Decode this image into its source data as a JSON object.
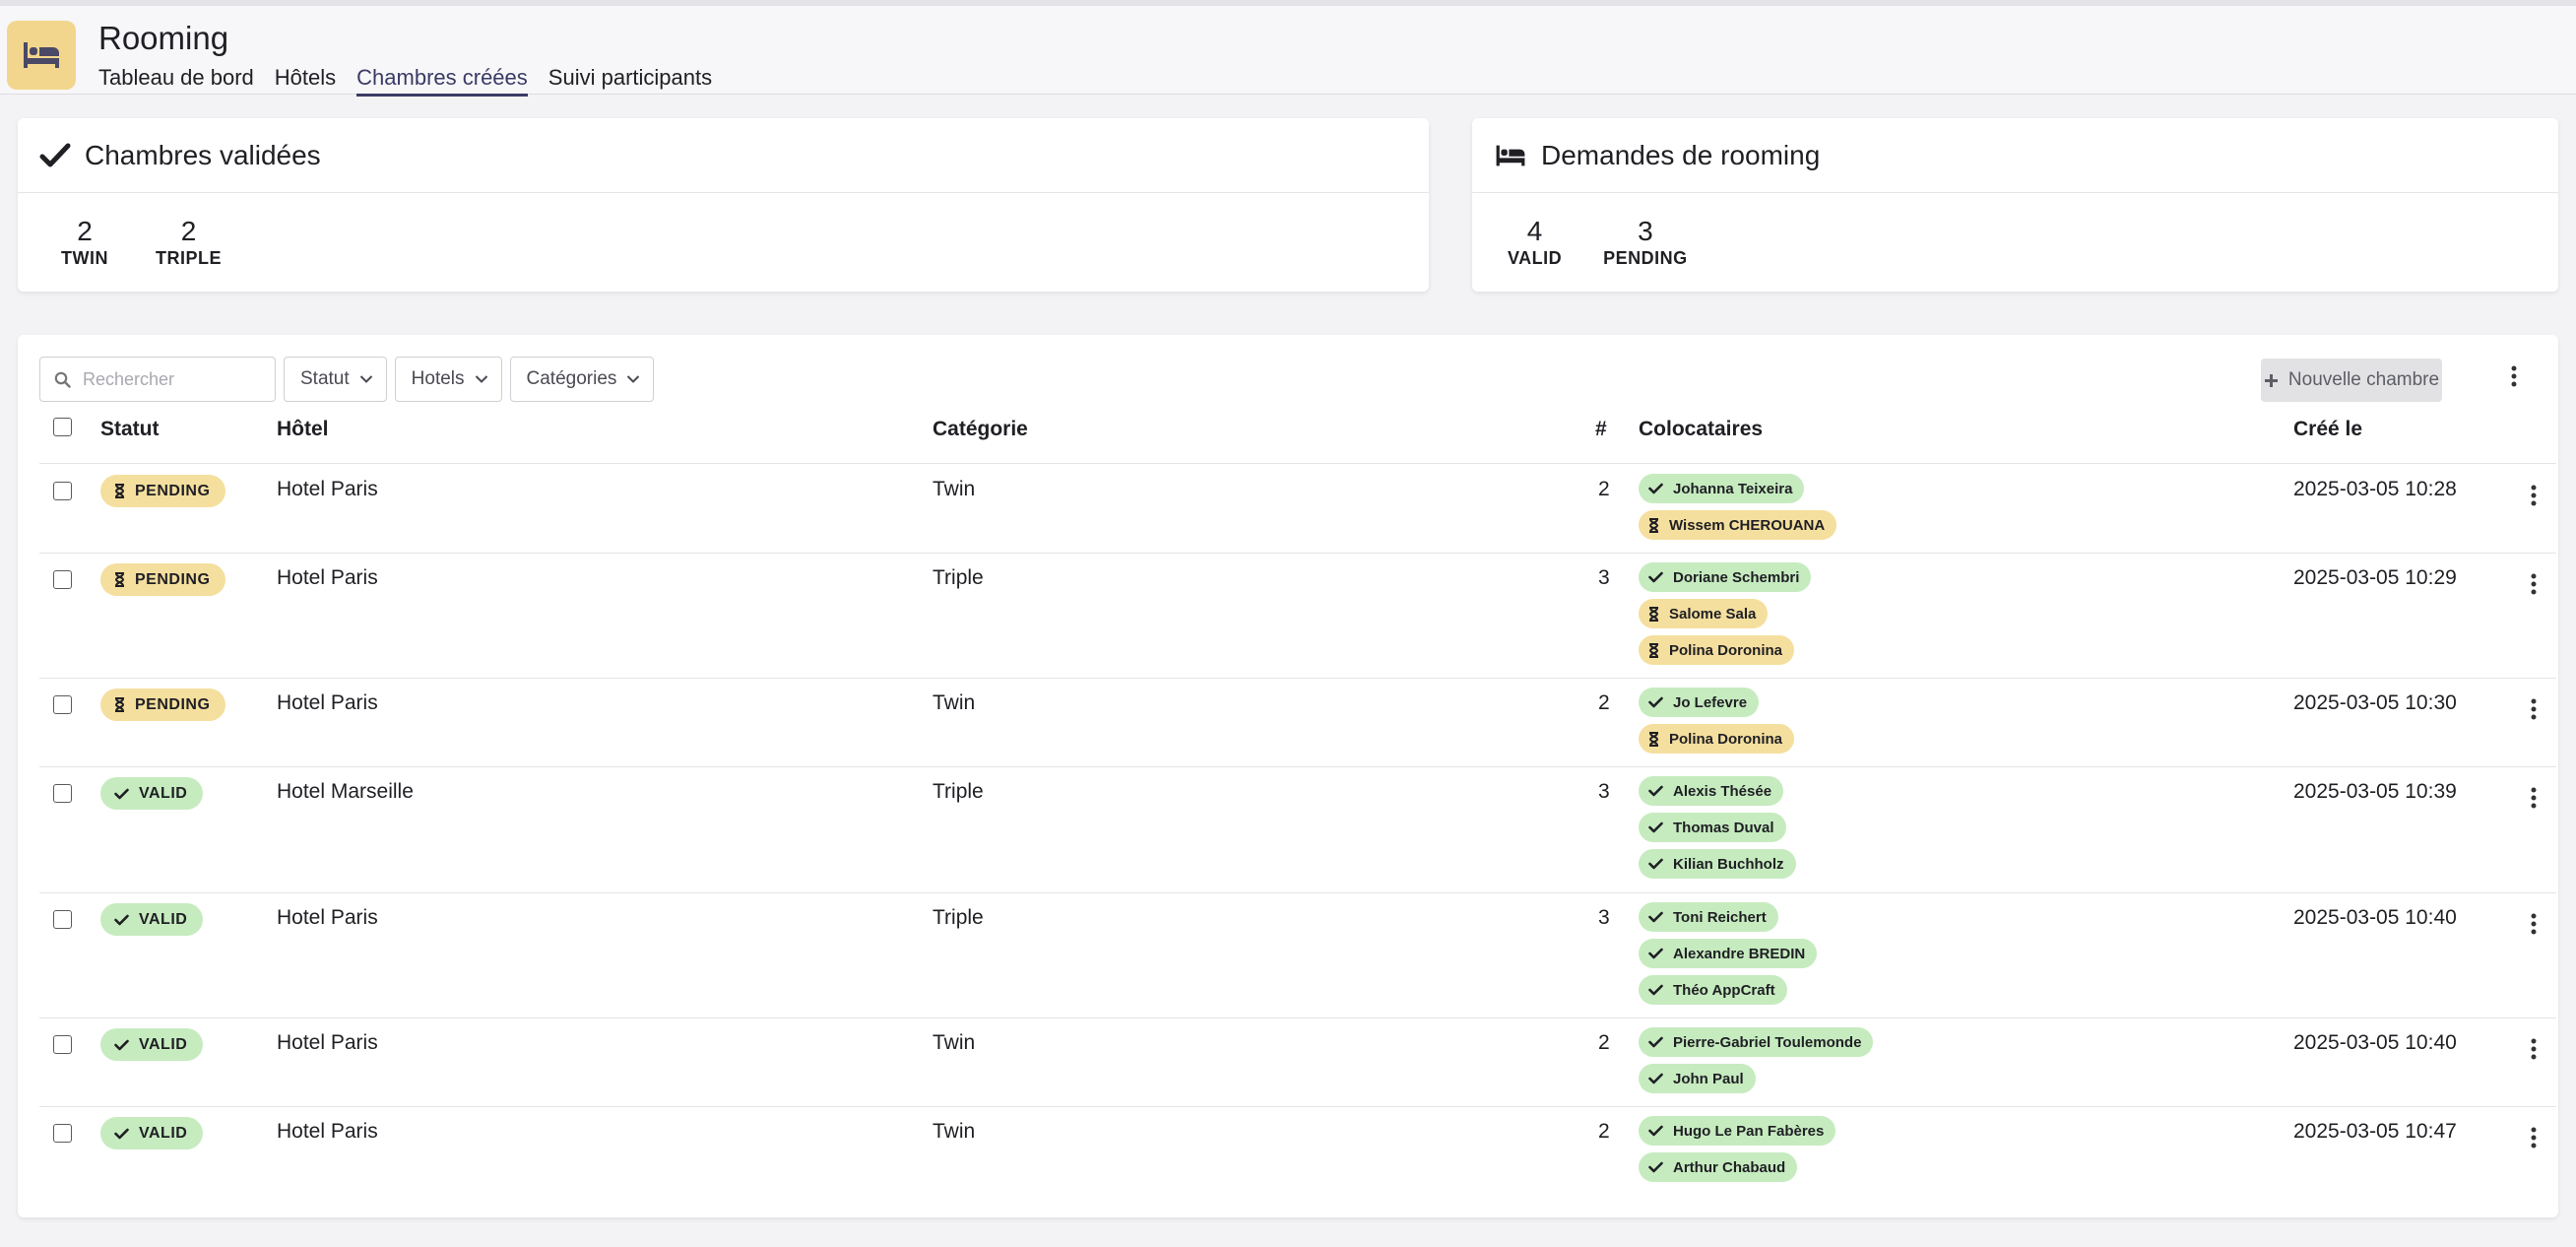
{
  "app": {
    "title": "Rooming",
    "icon": "bed-icon"
  },
  "tabs": [
    {
      "label": "Tableau de bord",
      "active": false
    },
    {
      "label": "Hôtels",
      "active": false
    },
    {
      "label": "Chambres créées",
      "active": true
    },
    {
      "label": "Suivi participants",
      "active": false
    }
  ],
  "validated_card": {
    "title": "Chambres validées",
    "icon": "check-icon",
    "stats": [
      {
        "value": "2",
        "label": "TWIN"
      },
      {
        "value": "2",
        "label": "TRIPLE"
      }
    ]
  },
  "requests_card": {
    "title": "Demandes de rooming",
    "icon": "bed-icon",
    "stats": [
      {
        "value": "4",
        "label": "VALID"
      },
      {
        "value": "3",
        "label": "PENDING"
      }
    ]
  },
  "toolbar": {
    "search_placeholder": "Rechercher",
    "filters": [
      "Statut",
      "Hotels",
      "Catégories"
    ],
    "new_button": "Nouvelle chambre"
  },
  "table": {
    "columns": {
      "status": "Statut",
      "hotel": "Hôtel",
      "category": "Catégorie",
      "count": "#",
      "mates": "Colocataires",
      "created": "Créé le"
    },
    "rows": [
      {
        "status": "PENDING",
        "state": "pending",
        "hotel": "Hotel Paris",
        "category": "Twin",
        "count": "2",
        "created": "2025-03-05 10:28",
        "mates": [
          {
            "name": "Johanna Teixeira",
            "state": "valid"
          },
          {
            "name": "Wissem CHEROUANA",
            "state": "pending"
          }
        ]
      },
      {
        "status": "PENDING",
        "state": "pending",
        "hotel": "Hotel Paris",
        "category": "Triple",
        "count": "3",
        "created": "2025-03-05 10:29",
        "mates": [
          {
            "name": "Doriane Schembri",
            "state": "valid"
          },
          {
            "name": "Salome Sala",
            "state": "pending"
          },
          {
            "name": "Polina Doronina",
            "state": "pending"
          }
        ]
      },
      {
        "status": "PENDING",
        "state": "pending",
        "hotel": "Hotel Paris",
        "category": "Twin",
        "count": "2",
        "created": "2025-03-05 10:30",
        "mates": [
          {
            "name": "Jo Lefevre",
            "state": "valid"
          },
          {
            "name": "Polina Doronina",
            "state": "pending"
          }
        ]
      },
      {
        "status": "VALID",
        "state": "valid",
        "hotel": "Hotel Marseille",
        "category": "Triple",
        "count": "3",
        "created": "2025-03-05 10:39",
        "mates": [
          {
            "name": "Alexis Thésée",
            "state": "valid"
          },
          {
            "name": "Thomas Duval",
            "state": "valid"
          },
          {
            "name": "Kilian Buchholz",
            "state": "valid"
          }
        ]
      },
      {
        "status": "VALID",
        "state": "valid",
        "hotel": "Hotel Paris",
        "category": "Triple",
        "count": "3",
        "created": "2025-03-05 10:40",
        "mates": [
          {
            "name": "Toni Reichert",
            "state": "valid"
          },
          {
            "name": "Alexandre BREDIN",
            "state": "valid"
          },
          {
            "name": "Théo AppCraft",
            "state": "valid"
          }
        ]
      },
      {
        "status": "VALID",
        "state": "valid",
        "hotel": "Hotel Paris",
        "category": "Twin",
        "count": "2",
        "created": "2025-03-05 10:40",
        "mates": [
          {
            "name": "Pierre-Gabriel Toulemonde",
            "state": "valid"
          },
          {
            "name": "John Paul",
            "state": "valid"
          }
        ]
      },
      {
        "status": "VALID",
        "state": "valid",
        "hotel": "Hotel Paris",
        "category": "Twin",
        "count": "2",
        "created": "2025-03-05 10:47",
        "mates": [
          {
            "name": "Hugo Le Pan Fabères",
            "state": "valid"
          },
          {
            "name": "Arthur Chabaud",
            "state": "valid"
          }
        ]
      }
    ]
  },
  "colors": {
    "accent": "#3a3a66",
    "pending": "#f4df9e",
    "valid": "#c6ebbf",
    "app_icon_bg": "#f3d68d"
  }
}
